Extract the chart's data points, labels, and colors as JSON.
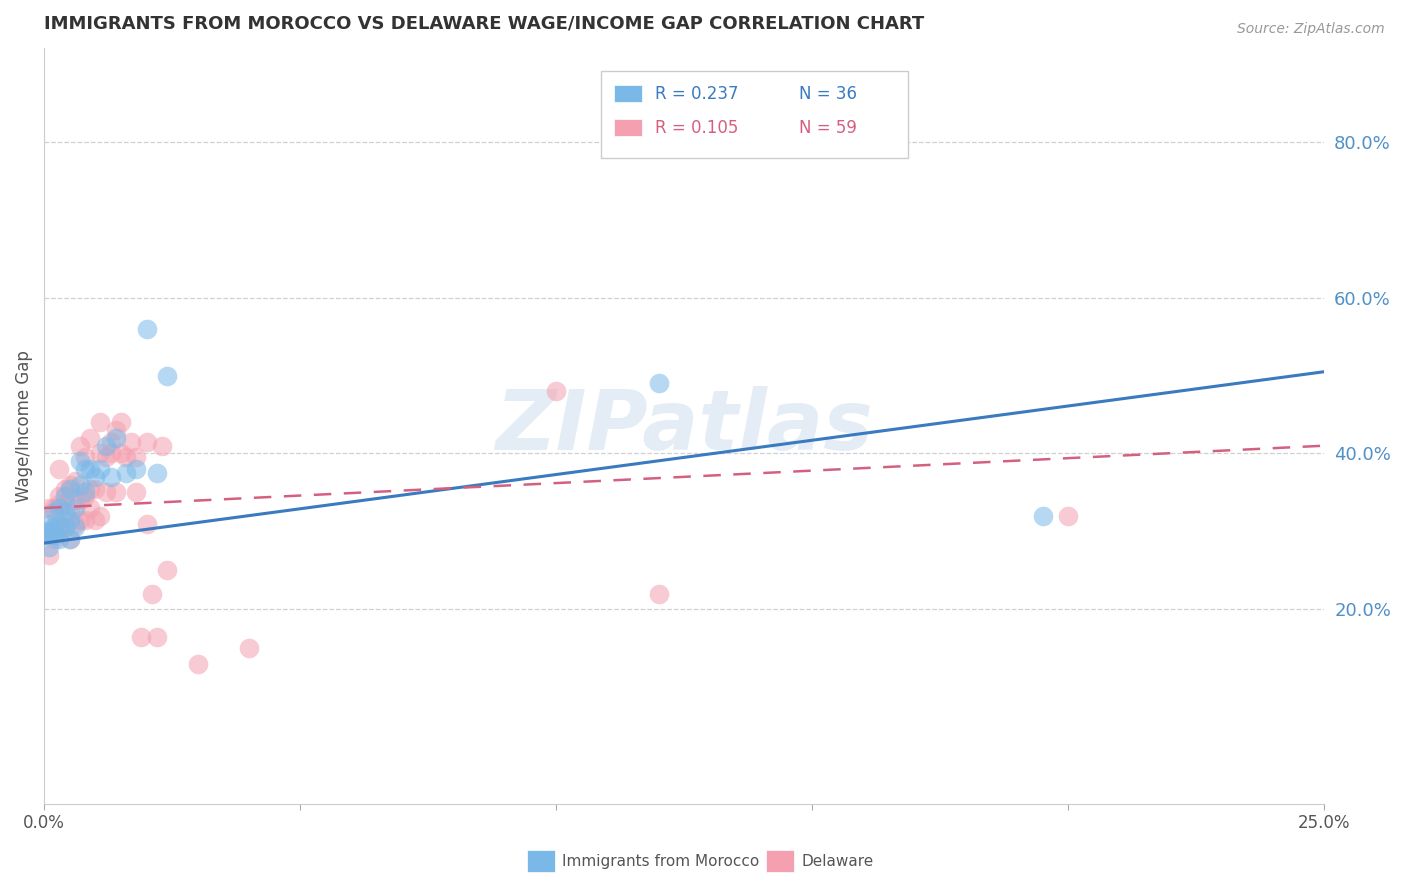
{
  "title": "IMMIGRANTS FROM MOROCCO VS DELAWARE WAGE/INCOME GAP CORRELATION CHART",
  "source": "Source: ZipAtlas.com",
  "ylabel": "Wage/Income Gap",
  "xlim": [
    0.0,
    0.25
  ],
  "ylim": [
    -0.05,
    0.92
  ],
  "yticks": [
    0.2,
    0.4,
    0.6,
    0.8
  ],
  "ytick_labels": [
    "20.0%",
    "40.0%",
    "60.0%",
    "80.0%"
  ],
  "xticks": [
    0.0,
    0.05,
    0.1,
    0.15,
    0.2,
    0.25
  ],
  "xtick_labels": [
    "0.0%",
    "",
    "",
    "",
    "",
    "25.0%"
  ],
  "watermark": "ZIPatlas",
  "legend": {
    "series1_label": "Immigrants from Morocco",
    "series2_label": "Delaware",
    "R1": "0.237",
    "N1": "36",
    "R2": "0.105",
    "N2": "59"
  },
  "series1_color": "#7ab8e8",
  "series2_color": "#f4a0b0",
  "trend1_color": "#3a7abf",
  "trend2_color": "#d46080",
  "background_color": "#ffffff",
  "grid_color": "#d0d0d0",
  "title_color": "#333333",
  "axis_label_color": "#555555",
  "right_axis_label_color": "#5090c8",
  "scatter1_x": [
    0.0005,
    0.0008,
    0.001,
    0.001,
    0.0015,
    0.002,
    0.002,
    0.002,
    0.003,
    0.003,
    0.003,
    0.004,
    0.004,
    0.004,
    0.005,
    0.005,
    0.005,
    0.006,
    0.006,
    0.007,
    0.007,
    0.008,
    0.008,
    0.009,
    0.01,
    0.011,
    0.012,
    0.013,
    0.014,
    0.016,
    0.018,
    0.02,
    0.022,
    0.024,
    0.12,
    0.195
  ],
  "scatter1_y": [
    0.3,
    0.295,
    0.28,
    0.31,
    0.3,
    0.295,
    0.305,
    0.325,
    0.29,
    0.305,
    0.33,
    0.305,
    0.325,
    0.345,
    0.29,
    0.315,
    0.355,
    0.305,
    0.33,
    0.36,
    0.39,
    0.35,
    0.38,
    0.38,
    0.37,
    0.38,
    0.41,
    0.37,
    0.42,
    0.375,
    0.38,
    0.56,
    0.375,
    0.5,
    0.49,
    0.32
  ],
  "scatter2_x": [
    0.001,
    0.001,
    0.001,
    0.0015,
    0.002,
    0.002,
    0.002,
    0.0025,
    0.003,
    0.003,
    0.003,
    0.003,
    0.004,
    0.004,
    0.004,
    0.005,
    0.005,
    0.005,
    0.006,
    0.006,
    0.006,
    0.007,
    0.007,
    0.007,
    0.008,
    0.008,
    0.008,
    0.009,
    0.009,
    0.009,
    0.01,
    0.01,
    0.011,
    0.011,
    0.011,
    0.012,
    0.012,
    0.013,
    0.013,
    0.014,
    0.014,
    0.015,
    0.015,
    0.016,
    0.017,
    0.018,
    0.018,
    0.019,
    0.02,
    0.02,
    0.021,
    0.022,
    0.023,
    0.024,
    0.03,
    0.04,
    0.1,
    0.12,
    0.2
  ],
  "scatter2_y": [
    0.27,
    0.295,
    0.33,
    0.3,
    0.29,
    0.305,
    0.33,
    0.3,
    0.31,
    0.335,
    0.345,
    0.38,
    0.305,
    0.335,
    0.355,
    0.29,
    0.325,
    0.36,
    0.31,
    0.34,
    0.365,
    0.315,
    0.34,
    0.41,
    0.315,
    0.345,
    0.395,
    0.33,
    0.355,
    0.42,
    0.315,
    0.355,
    0.32,
    0.4,
    0.44,
    0.35,
    0.395,
    0.4,
    0.415,
    0.35,
    0.43,
    0.4,
    0.44,
    0.395,
    0.415,
    0.35,
    0.395,
    0.165,
    0.31,
    0.415,
    0.22,
    0.165,
    0.41,
    0.25,
    0.13,
    0.15,
    0.48,
    0.22,
    0.32
  ],
  "trend1_x": [
    0.0,
    0.25
  ],
  "trend1_y_intercept": 0.285,
  "trend1_slope": 0.88,
  "trend2_x": [
    0.0,
    0.25
  ],
  "trend2_y_intercept": 0.33,
  "trend2_slope": 0.32
}
